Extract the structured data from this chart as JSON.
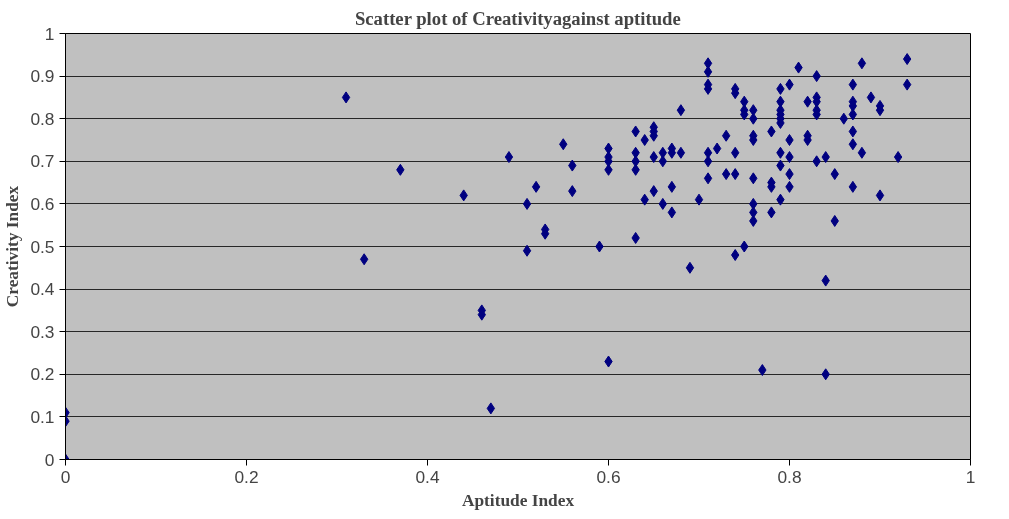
{
  "chart_data": {
    "type": "scatter",
    "title": "Scatter plot of Creativityagainst aptitude",
    "xlabel": "Aptitude Index",
    "ylabel": "Creativity Index",
    "x": [
      0,
      0,
      0,
      0.31,
      0.33,
      0.37,
      0.44,
      0.46,
      0.46,
      0.47,
      0.49,
      0.51,
      0.51,
      0.52,
      0.53,
      0.53,
      0.55,
      0.56,
      0.56,
      0.59,
      0.6,
      0.6,
      0.6,
      0.6,
      0.6,
      0.63,
      0.63,
      0.63,
      0.63,
      0.63,
      0.64,
      0.64,
      0.65,
      0.65,
      0.65,
      0.65,
      0.65,
      0.66,
      0.66,
      0.66,
      0.67,
      0.67,
      0.67,
      0.67,
      0.68,
      0.68,
      0.69,
      0.7,
      0.71,
      0.71,
      0.71,
      0.71,
      0.71,
      0.71,
      0.71,
      0.72,
      0.73,
      0.73,
      0.74,
      0.74,
      0.74,
      0.74,
      0.74,
      0.75,
      0.75,
      0.75,
      0.75,
      0.76,
      0.76,
      0.76,
      0.76,
      0.76,
      0.76,
      0.76,
      0.76,
      0.77,
      0.78,
      0.78,
      0.78,
      0.78,
      0.79,
      0.79,
      0.79,
      0.79,
      0.79,
      0.79,
      0.79,
      0.79,
      0.79,
      0.8,
      0.8,
      0.8,
      0.8,
      0.8,
      0.81,
      0.82,
      0.82,
      0.82,
      0.83,
      0.83,
      0.83,
      0.83,
      0.83,
      0.83,
      0.84,
      0.84,
      0.84,
      0.85,
      0.85,
      0.86,
      0.87,
      0.87,
      0.87,
      0.87,
      0.87,
      0.87,
      0.87,
      0.88,
      0.88,
      0.89,
      0.9,
      0.9,
      0.9,
      0.92,
      0.93,
      0.93
    ],
    "series": [
      {
        "color": "#000080",
        "values": [
          0.11,
          0.09,
          0,
          0.85,
          0.47,
          0.68,
          0.62,
          0.35,
          0.34,
          0.12,
          0.71,
          0.6,
          0.49,
          0.64,
          0.54,
          0.53,
          0.74,
          0.69,
          0.63,
          0.5,
          0.73,
          0.71,
          0.7,
          0.68,
          0.23,
          0.77,
          0.72,
          0.7,
          0.68,
          0.52,
          0.61,
          0.75,
          0.78,
          0.77,
          0.76,
          0.71,
          0.63,
          0.72,
          0.7,
          0.6,
          0.73,
          0.72,
          0.64,
          0.58,
          0.82,
          0.72,
          0.45,
          0.61,
          0.93,
          0.91,
          0.88,
          0.87,
          0.72,
          0.7,
          0.66,
          0.73,
          0.76,
          0.67,
          0.87,
          0.86,
          0.72,
          0.67,
          0.48,
          0.84,
          0.82,
          0.81,
          0.5,
          0.82,
          0.8,
          0.76,
          0.75,
          0.66,
          0.6,
          0.58,
          0.56,
          0.21,
          0.77,
          0.65,
          0.64,
          0.58,
          0.87,
          0.84,
          0.82,
          0.81,
          0.8,
          0.79,
          0.72,
          0.69,
          0.61,
          0.88,
          0.75,
          0.71,
          0.67,
          0.64,
          0.92,
          0.84,
          0.76,
          0.75,
          0.9,
          0.85,
          0.84,
          0.82,
          0.81,
          0.7,
          0.71,
          0.42,
          0.2,
          0.67,
          0.56,
          0.8,
          0.88,
          0.84,
          0.83,
          0.81,
          0.77,
          0.74,
          0.64,
          0.93,
          0.72,
          0.85,
          0.83,
          0.82,
          0.62,
          0.71,
          0.94,
          0.88
        ]
      }
    ],
    "xlim": [
      0,
      1
    ],
    "ylim": [
      0,
      1
    ],
    "xticks": [
      0,
      0.2,
      0.4,
      0.6,
      0.8,
      1
    ],
    "yticks": [
      0,
      0.1,
      0.2,
      0.3,
      0.4,
      0.5,
      0.6,
      0.7,
      0.8,
      0.9,
      1
    ],
    "grid": "y",
    "marker": "diamond"
  }
}
